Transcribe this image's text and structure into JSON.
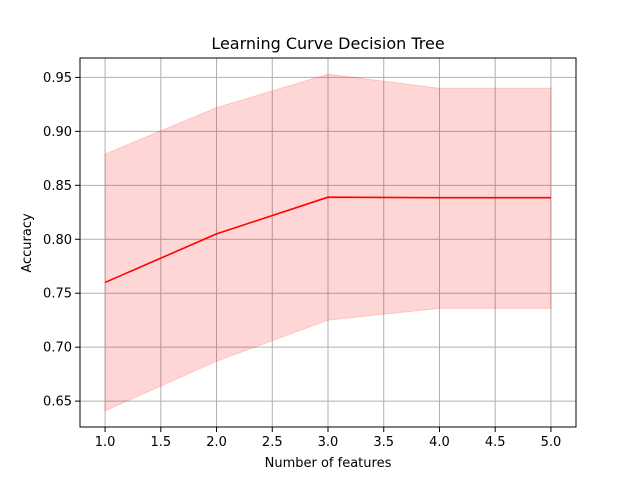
{
  "chart_data": {
    "type": "line",
    "title": "Learning Curve Decision Tree",
    "xlabel": "Number of features",
    "ylabel": "Accuracy",
    "xlim": [
      0.775,
      5.225
    ],
    "ylim": [
      0.626,
      0.968
    ],
    "x_ticks": [
      1.0,
      1.5,
      2.0,
      2.5,
      3.0,
      3.5,
      4.0,
      4.5,
      5.0
    ],
    "x_tick_labels": [
      "1.0",
      "1.5",
      "2.0",
      "2.5",
      "3.0",
      "3.5",
      "4.0",
      "4.5",
      "5.0"
    ],
    "y_ticks": [
      0.65,
      0.7,
      0.75,
      0.8,
      0.85,
      0.9,
      0.95
    ],
    "y_tick_labels": [
      "0.65",
      "0.70",
      "0.75",
      "0.80",
      "0.85",
      "0.90",
      "0.95"
    ],
    "grid": true,
    "series": [
      {
        "x": [
          1,
          2,
          3,
          4,
          5
        ],
        "values": [
          0.76,
          0.805,
          0.839,
          0.8385,
          0.8385
        ],
        "upper": [
          0.879,
          0.922,
          0.953,
          0.94,
          0.94
        ],
        "lower": [
          0.641,
          0.687,
          0.725,
          0.736,
          0.736
        ],
        "color": "#ff0000",
        "band_color": "#ff0000"
      }
    ]
  }
}
